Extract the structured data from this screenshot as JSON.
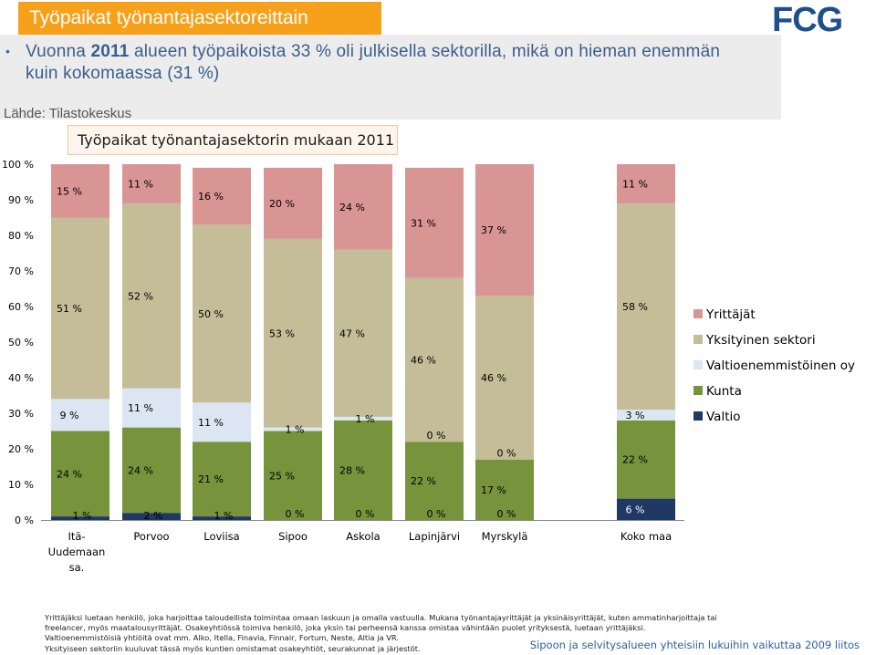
{
  "header": {
    "title": "Työpaikat työnantajasektoreittain",
    "logo_text": "FCG"
  },
  "summary": {
    "bullet": "•",
    "text_before": "Vuonna ",
    "year": "2011",
    "text_after": " alueen työpaikoista 33 % oli julkisella sektorilla, mikä on hieman enemmän kuin kokomaassa (31 %)",
    "source": "Lähde: Tilastokeskus"
  },
  "colors": {
    "Yrittäjät": "#d99494",
    "Yksityinen sektori": "#c4bd97",
    "Valtioenemmistöinen oy": "#dce6f2",
    "Kunta": "#77933c",
    "Valtio": "#1f3864"
  },
  "chart_data": {
    "type": "bar",
    "stacked": true,
    "title": "Työpaikat työnantajasektorin mukaan 2011",
    "categories": [
      "Itä-Uudemaan sa.",
      "Porvoo",
      "Loviisa",
      "Sipoo",
      "Askola",
      "Lapinjärvi",
      "Myrskylä",
      "Koko maa"
    ],
    "series": [
      {
        "name": "Valtio",
        "values": [
          1,
          2,
          1,
          0,
          0,
          0,
          0,
          6
        ],
        "labels": [
          "1 %",
          "2 %",
          "1 %",
          "0 %",
          "0 %",
          "0 %",
          "0 %",
          "6 %"
        ]
      },
      {
        "name": "Kunta",
        "values": [
          24,
          24,
          21,
          25,
          28,
          22,
          17,
          22
        ],
        "labels": [
          "24 %",
          "24 %",
          "21 %",
          "25 %",
          "28 %",
          "22 %",
          "17 %",
          "22 %"
        ]
      },
      {
        "name": "Valtioenemmistöinen oy",
        "values": [
          9,
          11,
          11,
          1,
          1,
          0,
          0,
          3
        ],
        "labels": [
          "9 %",
          "11 %",
          "11 %",
          "1 %",
          "1 %",
          "0 %",
          "0 %",
          "3 %"
        ]
      },
      {
        "name": "Yksityinen sektori",
        "values": [
          51,
          52,
          50,
          53,
          47,
          46,
          46,
          58
        ],
        "labels": [
          "51 %",
          "52 %",
          "50 %",
          "53 %",
          "47 %",
          "46 %",
          "46 %",
          "58 %"
        ]
      },
      {
        "name": "Yrittäjät",
        "values": [
          15,
          11,
          16,
          20,
          24,
          31,
          37,
          11
        ],
        "labels": [
          "15 %",
          "11 %",
          "16 %",
          "20 %",
          "24 %",
          "31 %",
          "37 %",
          "11 %"
        ]
      }
    ],
    "y_ticks": [
      "0 %",
      "10 %",
      "20 %",
      "30 %",
      "40 %",
      "50 %",
      "60 %",
      "70 %",
      "80 %",
      "90 %",
      "100 %"
    ],
    "ylim": [
      0,
      100
    ],
    "legend": [
      "Yrittäjät",
      "Yksityinen sektori",
      "Valtioenemmistöinen oy",
      "Kunta",
      "Valtio"
    ],
    "legend_position": "right"
  },
  "notes": [
    "Yrittäjäksi luetaan henkilö, joka harjoittaa taloudellista toimintaa omaan laskuun ja omalla vastuulla. Mukana työnantajayrittäjät ja yksinäisyrittäjät, kuten ammatinharjoittaja tai",
    "freelancer, myös maatalousyrittäjät. Osakeyhtiössä toimiva henkilö, joka yksin tai perheensä kanssa omistaa vähintään puolet yrityksestä, luetaan yrittäjäksi.",
    "Valtioenemmistöisiä yhtiöitä ovat mm. Alko, Itella, Finavia, Finnair, Fortum, Neste, Altia ja VR.",
    "Yksityiseen sektoriin kuuluvat tässä myös kuntien omistamat osakeyhtiöt, seurakunnat ja järjestöt."
  ],
  "footer": "Sipoon ja selvitysalueen yhteisiin lukuihin vaikuttaa 2009 liitos"
}
